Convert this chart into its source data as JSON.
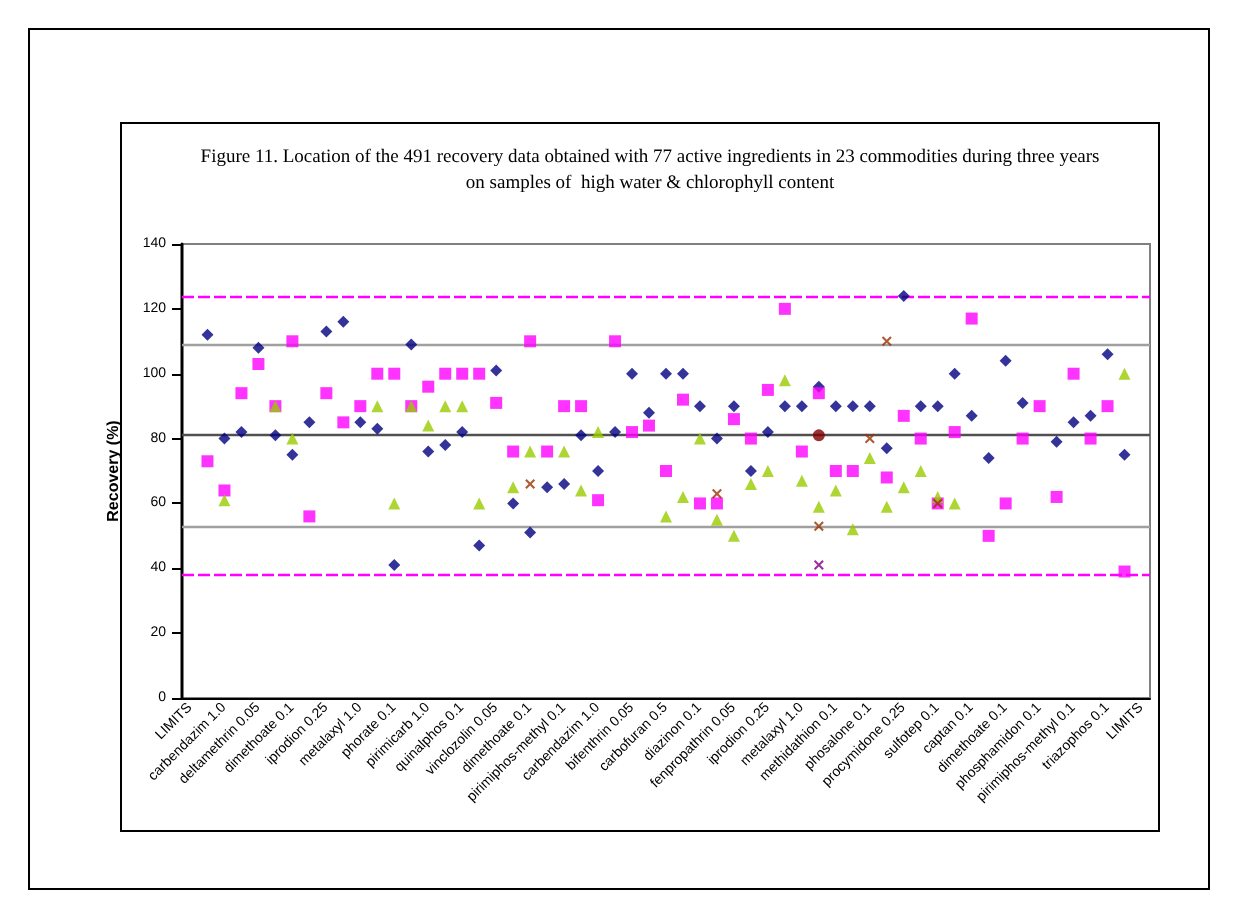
{
  "chart_data": {
    "type": "scatter",
    "title": "Figure 11. Location of the 491 recovery data obtained with 77 active ingredients in 23 commodities during three years",
    "subtitle": "on samples of  high water & chlorophyll content",
    "ylabel": "Recovery (%)",
    "categories": [
      "LIMITS",
      null,
      "carbendazim 1.0",
      null,
      "deltamethrin 0.05",
      null,
      "dimethoate 0.1",
      null,
      "iprodion 0.25",
      null,
      "metalaxyl 1.0",
      null,
      "phorate 0.1",
      null,
      "pirimicarb 1.0",
      null,
      "quinalphos 0.1",
      null,
      "vinclozolin 0.05",
      null,
      "dimethoate 0.1",
      null,
      "pirimiphos-methyl 0.1",
      null,
      "carbendazim 1.0",
      null,
      "bifenthrin 0.05",
      null,
      "carbofuran 0.5",
      null,
      "diazinon 0.1",
      null,
      "fenpropathrin 0.05",
      null,
      "iprodion 0.25",
      null,
      "metalaxyl 1.0",
      null,
      "methidathion 0.1",
      null,
      "phosalone 0.1",
      null,
      "procymidone 0.25",
      null,
      "sulfotep 0.1",
      null,
      "captan 0.1",
      null,
      "dimethoate 0.1",
      null,
      "phosphamidon 0.1",
      null,
      "pirimiphos-methyl 0.1",
      null,
      "triazophos 0.1",
      null,
      "LIMITS"
    ],
    "ylim": [
      0,
      140
    ],
    "yticks": [
      0,
      20,
      40,
      60,
      80,
      100,
      120,
      140
    ],
    "grid": false,
    "ref_lines": [
      {
        "axis": "y",
        "value": 124,
        "color": "#ff00ff",
        "line_style": "dashed"
      },
      {
        "axis": "y",
        "value": 109,
        "color": "#a0a0a0",
        "line_style": "solid"
      },
      {
        "axis": "y",
        "value": 81,
        "color": "#505050",
        "line_style": "solid"
      },
      {
        "axis": "y",
        "value": 53,
        "color": "#a0a0a0",
        "line_style": "solid"
      },
      {
        "axis": "y",
        "value": 38,
        "color": "#ff00ff",
        "line_style": "dashed"
      }
    ],
    "series": [
      {
        "color": "#000080",
        "marker": "diamond",
        "values": [
          null,
          112,
          80,
          82,
          108,
          81,
          75,
          85,
          113,
          116,
          85,
          83,
          41,
          109,
          76,
          78,
          82,
          47,
          101,
          60,
          51,
          65,
          66,
          81,
          70,
          82,
          100,
          88,
          100,
          100,
          90,
          80,
          90,
          70,
          82,
          90,
          90,
          96,
          90,
          90,
          90,
          77,
          124,
          90,
          90,
          100,
          87,
          74,
          104,
          91,
          null,
          79,
          85,
          87,
          106,
          75,
          null
        ]
      },
      {
        "color": "#ff00ff",
        "marker": "square",
        "values": [
          null,
          73,
          64,
          94,
          103,
          90,
          110,
          56,
          94,
          85,
          90,
          100,
          100,
          90,
          96,
          100,
          100,
          100,
          91,
          76,
          110,
          76,
          90,
          90,
          61,
          110,
          82,
          84,
          70,
          92,
          60,
          60,
          86,
          80,
          95,
          120,
          76,
          94,
          70,
          70,
          null,
          68,
          87,
          80,
          60,
          82,
          117,
          50,
          60,
          80,
          90,
          62,
          100,
          80,
          90,
          39,
          null
        ]
      },
      {
        "color": "#99cc00",
        "marker": "triangle",
        "values": [
          null,
          null,
          61,
          null,
          null,
          90,
          80,
          null,
          null,
          null,
          null,
          90,
          60,
          90,
          84,
          90,
          90,
          60,
          null,
          65,
          76,
          null,
          76,
          64,
          82,
          null,
          null,
          null,
          56,
          62,
          80,
          55,
          50,
          66,
          70,
          98,
          67,
          59,
          64,
          52,
          74,
          59,
          65,
          70,
          62,
          60,
          null,
          null,
          null,
          null,
          null,
          null,
          null,
          null,
          null,
          100,
          null
        ]
      },
      {
        "color": "#993300",
        "marker": "cross",
        "values": [
          null,
          null,
          null,
          null,
          null,
          null,
          null,
          null,
          null,
          null,
          null,
          null,
          null,
          null,
          null,
          null,
          null,
          null,
          null,
          null,
          66,
          null,
          null,
          null,
          null,
          null,
          null,
          null,
          null,
          null,
          null,
          63,
          null,
          null,
          null,
          null,
          null,
          53,
          null,
          null,
          80,
          110,
          null,
          null,
          60,
          null,
          null,
          null,
          null,
          null,
          null,
          null,
          null,
          null,
          null,
          null,
          null
        ]
      },
      {
        "color": "#800000",
        "marker": "circle",
        "values": [
          null,
          null,
          null,
          null,
          null,
          null,
          null,
          null,
          null,
          null,
          null,
          null,
          null,
          null,
          null,
          null,
          null,
          null,
          null,
          null,
          null,
          null,
          null,
          null,
          null,
          null,
          null,
          null,
          null,
          null,
          null,
          null,
          null,
          null,
          null,
          null,
          null,
          81,
          null,
          null,
          null,
          null,
          null,
          null,
          null,
          null,
          null,
          null,
          null,
          null,
          null,
          null,
          null,
          null,
          null,
          null,
          null
        ]
      },
      {
        "color": "#800080",
        "marker": "cross",
        "values": [
          null,
          null,
          null,
          null,
          null,
          null,
          null,
          null,
          null,
          null,
          null,
          null,
          null,
          null,
          null,
          null,
          null,
          null,
          null,
          null,
          null,
          null,
          null,
          null,
          null,
          null,
          null,
          null,
          null,
          null,
          null,
          null,
          null,
          null,
          null,
          null,
          null,
          41,
          null,
          null,
          null,
          null,
          null,
          null,
          null,
          null,
          null,
          null,
          null,
          null,
          null,
          null,
          null,
          null,
          null,
          null,
          null
        ]
      }
    ]
  }
}
